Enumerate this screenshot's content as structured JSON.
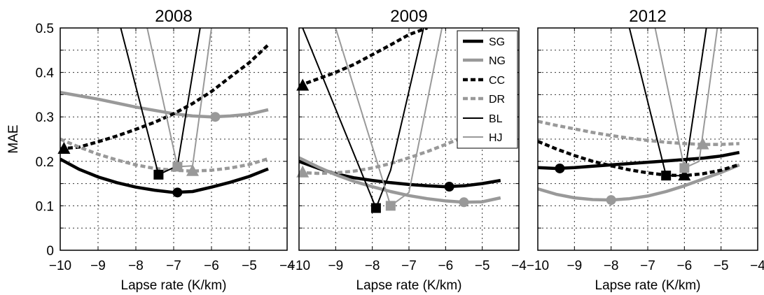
{
  "colors": {
    "black": "#000000",
    "gray": "#999999",
    "grid": "#333333"
  },
  "chart_data": [
    {
      "type": "line",
      "title": "2008",
      "xlabel": "Lapse rate (K/km)",
      "ylabel": "MAE",
      "xlim": [
        -10,
        -4
      ],
      "ylim": [
        0,
        0.5
      ],
      "xticks": [
        "−10",
        "−9",
        "−8",
        "−7",
        "−6",
        "−5",
        "−4"
      ],
      "yticks": [
        "0",
        "0.1",
        "0.2",
        "0.3",
        "0.4",
        "0.5"
      ],
      "grid": true,
      "series": [
        {
          "name": "SG",
          "x": [
            -10,
            -9.5,
            -9,
            -8.5,
            -8,
            -7.5,
            -7,
            -6.5,
            -6,
            -5.5,
            -5,
            -4.5
          ],
          "y": [
            0.205,
            0.182,
            0.165,
            0.152,
            0.142,
            0.135,
            0.13,
            0.132,
            0.142,
            0.153,
            0.166,
            0.183
          ],
          "min": {
            "x": -6.9,
            "y": 0.13
          }
        },
        {
          "name": "NG",
          "x": [
            -10,
            -9,
            -8,
            -7,
            -6.5,
            -6,
            -5.5,
            -5,
            -4.5
          ],
          "y": [
            0.355,
            0.34,
            0.322,
            0.307,
            0.302,
            0.3,
            0.302,
            0.306,
            0.316
          ],
          "min": {
            "x": -5.9,
            "y": 0.3
          }
        },
        {
          "name": "CC",
          "x": [
            -10,
            -9.5,
            -9,
            -8.5,
            -8,
            -7.5,
            -7,
            -6.5,
            -6,
            -5.5,
            -5,
            -4.5
          ],
          "y": [
            0.228,
            0.232,
            0.244,
            0.257,
            0.272,
            0.288,
            0.307,
            0.33,
            0.357,
            0.39,
            0.422,
            0.462
          ],
          "min": {
            "x": -9.9,
            "y": 0.228
          }
        },
        {
          "name": "DR",
          "x": [
            -10,
            -9.5,
            -9,
            -8.5,
            -8,
            -7.5,
            -7,
            -6.5,
            -6,
            -5.5,
            -5,
            -4.5
          ],
          "y": [
            0.25,
            0.232,
            0.216,
            0.203,
            0.192,
            0.184,
            0.18,
            0.178,
            0.18,
            0.185,
            0.193,
            0.206
          ],
          "min": {
            "x": -6.5,
            "y": 0.178
          }
        },
        {
          "name": "BL",
          "x": [
            -8.4,
            -7.4,
            -6.9,
            -6.3
          ],
          "y": [
            0.5,
            0.17,
            0.19,
            0.5
          ],
          "min": {
            "x": -7.4,
            "y": 0.17
          }
        },
        {
          "name": "HJ",
          "x": [
            -7.7,
            -6.9,
            -6.5,
            -6.0
          ],
          "y": [
            0.5,
            0.188,
            0.19,
            0.5
          ],
          "min": {
            "x": -6.9,
            "y": 0.188
          }
        }
      ]
    },
    {
      "type": "line",
      "title": "2009",
      "xlabel": "Lapse rate (K/km)",
      "ylabel": "",
      "xlim": [
        -10,
        -4
      ],
      "ylim": [
        0,
        0.5
      ],
      "xticks": [
        "−10",
        "−9",
        "−8",
        "−7",
        "−6",
        "−5",
        "−4"
      ],
      "yticks": [],
      "grid": true,
      "series": [
        {
          "name": "SG",
          "x": [
            -10,
            -9.5,
            -9,
            -8.5,
            -8,
            -7.5,
            -7,
            -6.5,
            -6,
            -5.5,
            -5,
            -4.5
          ],
          "y": [
            0.2,
            0.185,
            0.172,
            0.163,
            0.157,
            0.152,
            0.148,
            0.145,
            0.143,
            0.145,
            0.15,
            0.157
          ],
          "min": {
            "x": -5.9,
            "y": 0.143
          }
        },
        {
          "name": "NG",
          "x": [
            -10,
            -9.5,
            -9,
            -8.5,
            -8,
            -7.5,
            -7,
            -6.5,
            -6,
            -5.5,
            -5,
            -4.5
          ],
          "y": [
            0.208,
            0.188,
            0.17,
            0.155,
            0.143,
            0.132,
            0.123,
            0.116,
            0.111,
            0.108,
            0.109,
            0.118
          ],
          "min": {
            "x": -5.5,
            "y": 0.108
          }
        },
        {
          "name": "CC",
          "x": [
            -10,
            -9.5,
            -9,
            -8.5,
            -8,
            -7.5,
            -7,
            -6.5
          ],
          "y": [
            0.37,
            0.385,
            0.4,
            0.418,
            0.44,
            0.462,
            0.485,
            0.5
          ],
          "min": {
            "x": -9.9,
            "y": 0.37
          }
        },
        {
          "name": "DR",
          "x": [
            -10,
            -9.5,
            -9,
            -8.5,
            -8,
            -7.5,
            -7,
            -6.5,
            -6,
            -5.5
          ],
          "y": [
            0.175,
            0.173,
            0.174,
            0.178,
            0.185,
            0.195,
            0.208,
            0.222,
            0.238,
            0.255
          ],
          "min": {
            "x": -9.9,
            "y": 0.175
          }
        },
        {
          "name": "BL",
          "x": [
            -9.9,
            -7.9,
            -7.5,
            -6.6
          ],
          "y": [
            0.5,
            0.095,
            0.18,
            0.5
          ],
          "min": {
            "x": -7.9,
            "y": 0.095
          }
        },
        {
          "name": "HJ",
          "x": [
            -9.0,
            -7.5,
            -7.0,
            -6.1
          ],
          "y": [
            0.5,
            0.1,
            0.13,
            0.5
          ],
          "min": {
            "x": -7.5,
            "y": 0.1
          }
        }
      ],
      "legend": {
        "placement": "top-right",
        "entries": [
          "SG",
          "NG",
          "CC",
          "DR",
          "BL",
          "HJ"
        ]
      }
    },
    {
      "type": "line",
      "title": "2012",
      "xlabel": "Lapse rate (K/km)",
      "ylabel": "",
      "xlim": [
        -10,
        -4
      ],
      "ylim": [
        0,
        0.5
      ],
      "xticks": [
        "−10",
        "−9",
        "−8",
        "−7",
        "−6",
        "−5",
        "−4"
      ],
      "yticks": [],
      "grid": true,
      "series": [
        {
          "name": "SG",
          "x": [
            -10,
            -9.5,
            -9,
            -8.5,
            -8,
            -7.5,
            -7,
            -6.5,
            -6,
            -5.5,
            -5,
            -4.5
          ],
          "y": [
            0.186,
            0.184,
            0.186,
            0.189,
            0.192,
            0.195,
            0.198,
            0.201,
            0.204,
            0.207,
            0.212,
            0.22
          ],
          "min": {
            "x": -9.4,
            "y": 0.184
          }
        },
        {
          "name": "NG",
          "x": [
            -10,
            -9.5,
            -9,
            -8.5,
            -8,
            -7.5,
            -7,
            -6.5,
            -6,
            -5.5,
            -5,
            -4.5
          ],
          "y": [
            0.138,
            0.126,
            0.118,
            0.114,
            0.113,
            0.116,
            0.122,
            0.132,
            0.145,
            0.16,
            0.175,
            0.192
          ],
          "min": {
            "x": -8.0,
            "y": 0.113
          }
        },
        {
          "name": "CC",
          "x": [
            -10,
            -9.5,
            -9,
            -8.5,
            -8,
            -7.5,
            -7,
            -6.5,
            -6,
            -5.5,
            -5,
            -4.5
          ],
          "y": [
            0.245,
            0.228,
            0.213,
            0.2,
            0.19,
            0.181,
            0.174,
            0.169,
            0.168,
            0.172,
            0.18,
            0.193
          ],
          "min": {
            "x": -6.0,
            "y": 0.168
          }
        },
        {
          "name": "DR",
          "x": [
            -10,
            -9.5,
            -9,
            -8.5,
            -8,
            -7.5,
            -7,
            -6.5,
            -6,
            -5.5,
            -5,
            -4.5
          ],
          "y": [
            0.29,
            0.281,
            0.273,
            0.265,
            0.258,
            0.252,
            0.247,
            0.243,
            0.24,
            0.238,
            0.238,
            0.24
          ],
          "min": {
            "x": -5.5,
            "y": 0.238
          }
        },
        {
          "name": "BL",
          "x": [
            -7.5,
            -6.5,
            -6.0,
            -5.4
          ],
          "y": [
            0.5,
            0.168,
            0.168,
            0.5
          ],
          "min": {
            "x": -6.5,
            "y": 0.168
          }
        },
        {
          "name": "HJ",
          "x": [
            -6.8,
            -6.0,
            -5.6,
            -5.1
          ],
          "y": [
            0.5,
            0.185,
            0.2,
            0.5
          ],
          "min": {
            "x": -6.0,
            "y": 0.185
          }
        }
      ]
    }
  ]
}
